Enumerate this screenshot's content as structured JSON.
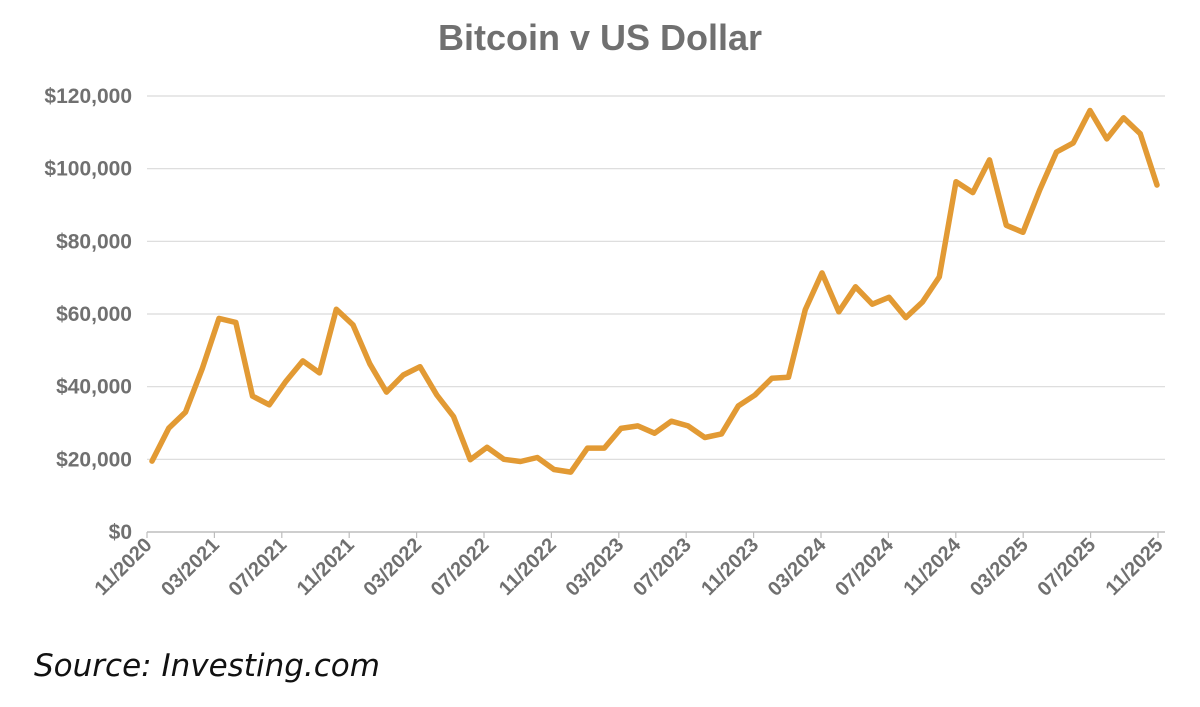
{
  "chart_data": {
    "type": "line",
    "title": "Bitcoin v US Dollar",
    "xlabel": "",
    "ylabel": "",
    "ylim": [
      0,
      120000
    ],
    "yticks": [
      0,
      20000,
      40000,
      60000,
      80000,
      100000,
      120000
    ],
    "ytick_labels": [
      "$0",
      "$20,000",
      "$40,000",
      "$60,000",
      "$80,000",
      "$100,000",
      "$120,000"
    ],
    "xtick_labels": [
      "11/2020",
      "03/2021",
      "07/2021",
      "11/2021",
      "03/2022",
      "07/2022",
      "11/2022",
      "03/2023",
      "07/2023",
      "11/2023",
      "03/2024",
      "07/2024",
      "11/2024",
      "03/2025",
      "07/2025",
      "11/2025"
    ],
    "grid": "horizontal",
    "line_color": "#E29A34",
    "x_start": "11/2020",
    "x_end": "11/2025",
    "frequency": "monthly",
    "values": [
      19500,
      28600,
      33000,
      45000,
      58800,
      57700,
      37400,
      35000,
      41500,
      47100,
      43800,
      61300,
      57000,
      46300,
      38500,
      43200,
      45500,
      37700,
      31800,
      19900,
      23300,
      20000,
      19400,
      20500,
      17200,
      16500,
      23100,
      23100,
      28500,
      29200,
      27200,
      30500,
      29200,
      26000,
      27000,
      34700,
      37700,
      42300,
      42600,
      61200,
      71300,
      60600,
      67500,
      62700,
      64600,
      59000,
      63300,
      70200,
      96400,
      93400,
      102400,
      84400,
      82500,
      94200,
      104600,
      107100,
      116000,
      108200,
      114000,
      109600,
      95500
    ]
  },
  "source": "Source: Investing.com"
}
